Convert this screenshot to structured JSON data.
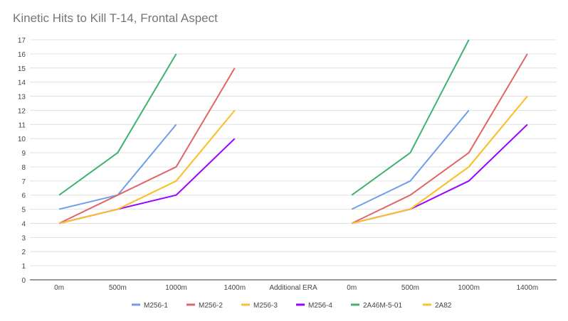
{
  "chart_data": {
    "type": "line",
    "title": "Kinetic Hits to Kill T-14, Frontal Aspect",
    "xlabel": "",
    "ylabel": "",
    "categories": [
      "0m",
      "500m",
      "1000m",
      "1400m",
      "Additional ERA",
      "0m",
      "500m",
      "1000m",
      "1400m"
    ],
    "ylim": [
      0,
      17
    ],
    "yticks": [
      0,
      1,
      2,
      3,
      4,
      5,
      6,
      7,
      8,
      9,
      10,
      11,
      12,
      13,
      14,
      15,
      16,
      17
    ],
    "grid": true,
    "legend_position": "bottom",
    "series": [
      {
        "name": "M256-1",
        "color": "#6d9eeb",
        "values": [
          5,
          6,
          11,
          null,
          null,
          5,
          7,
          12,
          null
        ]
      },
      {
        "name": "M256-2",
        "color": "#e06666",
        "values": [
          4,
          6,
          8,
          15,
          null,
          4,
          6,
          9,
          16
        ]
      },
      {
        "name": "M256-3",
        "color": "#f1c232",
        "values": [
          4,
          5,
          7,
          12,
          null,
          4,
          5,
          8,
          13
        ]
      },
      {
        "name": "M256-4",
        "color": "#9900ff",
        "values": [
          4,
          5,
          6,
          10,
          null,
          4,
          5,
          7,
          11
        ]
      },
      {
        "name": "2A46M-5-01",
        "color": "#3cb371",
        "values": [
          6,
          9,
          16,
          null,
          null,
          6,
          9,
          17,
          null
        ]
      },
      {
        "name": "2A82",
        "color": "#fbc02d",
        "values": [
          4,
          5,
          7,
          12,
          null,
          4,
          5,
          8,
          13
        ]
      }
    ]
  }
}
